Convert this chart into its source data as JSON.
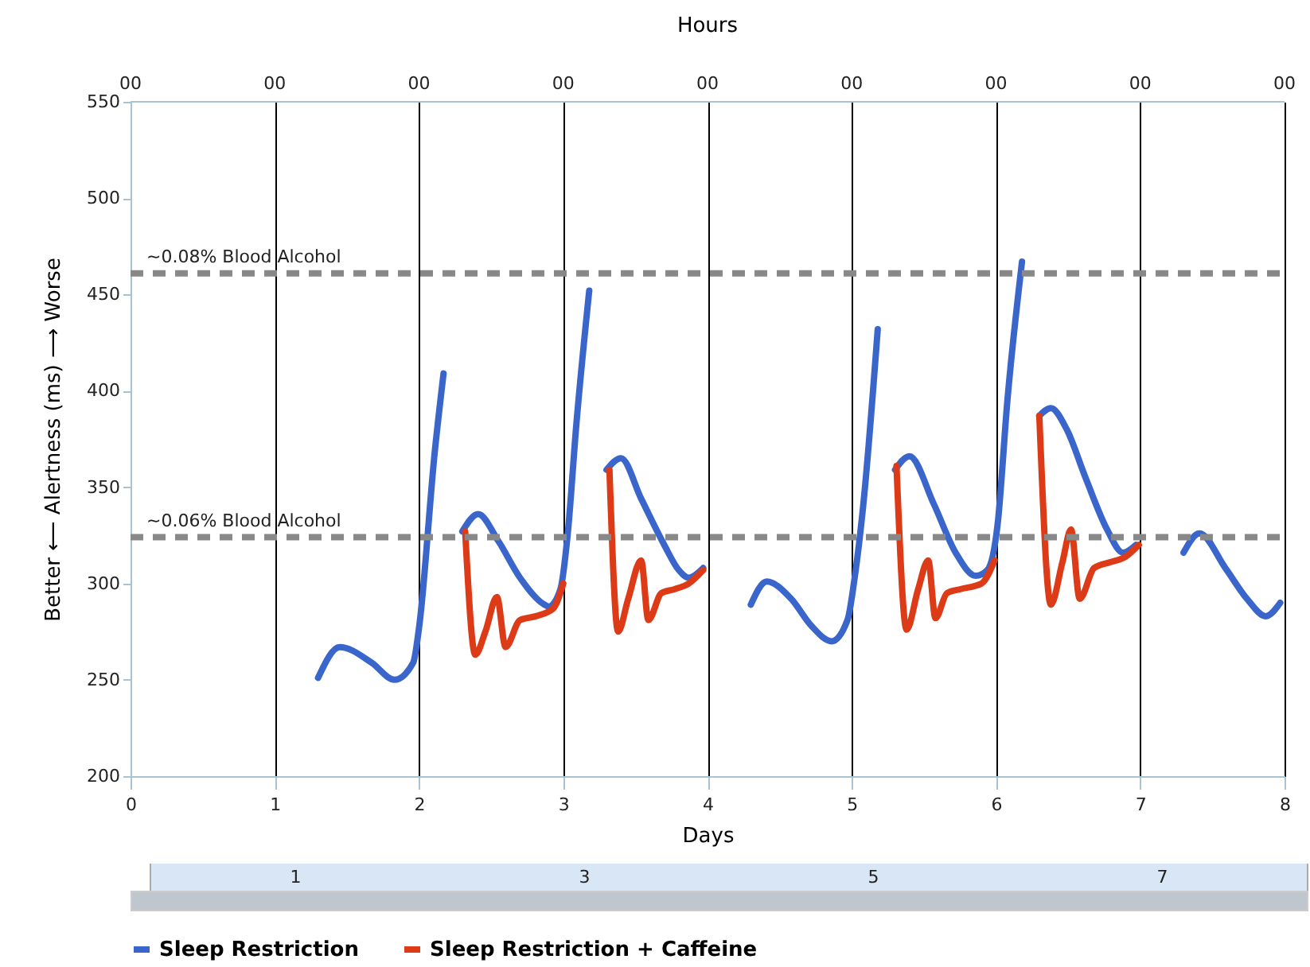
{
  "chart_data": {
    "type": "line",
    "xlabel": "Days",
    "ylabel": "Better ⟵ Alertness (ms) ⟶ Worse",
    "x2label": "Hours",
    "xlim": [
      0,
      8
    ],
    "xticks": [
      0,
      1,
      2,
      3,
      4,
      5,
      6,
      7,
      8
    ],
    "ylim": [
      200,
      550
    ],
    "yticks": [
      200,
      250,
      300,
      350,
      400,
      450,
      500,
      550
    ],
    "grid": "x",
    "legend": "bottom",
    "line_style": "solid",
    "marker": "none",
    "ref_lines": [
      {
        "axis": "y",
        "value": 461,
        "label": "~0.08% Blood Alcohol",
        "color": "#888888",
        "line_style": "dashed"
      },
      {
        "axis": "y",
        "value": 324,
        "label": "~0.06% Blood Alcohol",
        "color": "#888888",
        "line_style": "dashed"
      }
    ],
    "annotations": [
      "00",
      "00",
      "00",
      "00",
      "00",
      "00",
      "00",
      "00",
      "00",
      "1",
      "3",
      "5",
      "7"
    ],
    "series": [
      {
        "name": "Sleep Restriction",
        "color": "#3a66cc",
        "x": [
          1.3,
          1.45,
          1.67,
          1.83,
          1.96,
          2.0,
          2.11,
          2.17,
          2.23,
          2.3,
          2.41,
          2.55,
          2.7,
          2.87,
          2.9,
          2.98,
          3.03,
          3.09,
          3.18,
          3.24,
          3.3,
          3.4,
          3.54,
          3.7,
          3.8,
          3.87,
          3.97,
          4.15,
          4.3,
          4.41,
          4.58,
          4.72,
          4.86,
          4.97,
          5.02,
          5.08,
          5.18,
          5.24,
          5.3,
          5.4,
          5.57,
          5.72,
          5.86,
          5.94,
          6.01,
          6.08,
          6.18,
          6.24,
          6.3,
          6.38,
          6.49,
          6.62,
          6.77,
          6.88,
          6.97,
          7.15,
          7.3,
          7.41,
          7.59,
          7.74,
          7.87,
          7.97
        ],
        "values": [
          251,
          267,
          259,
          250,
          259,
          277,
          369,
          409,
          null,
          327,
          336,
          322,
          303,
          289,
          288,
          297,
          325,
          382,
          452,
          null,
          359,
          365,
          344,
          320,
          307,
          303,
          308,
          null,
          289,
          301,
          292,
          278,
          270,
          281,
          303,
          341,
          432,
          null,
          359,
          366,
          341,
          316,
          304,
          307,
          330,
          396,
          467,
          null,
          387,
          391,
          380,
          355,
          328,
          316,
          320,
          null,
          316,
          326,
          308,
          292,
          283,
          290
        ]
      },
      {
        "name": "Sleep Restriction + Caffeine",
        "color": "#dd3b17",
        "x": [
          2.32,
          2.39,
          2.46,
          2.54,
          2.6,
          2.7,
          2.81,
          2.93,
          3.0,
          3.16,
          3.32,
          3.38,
          3.45,
          3.54,
          3.59,
          3.68,
          3.77,
          3.87,
          3.97,
          4.6,
          5.31,
          5.38,
          5.46,
          5.53,
          5.58,
          5.66,
          5.75,
          5.9,
          5.99,
          6.15,
          6.3,
          6.38,
          6.46,
          6.52,
          6.58,
          6.68,
          6.79,
          6.9,
          6.99
        ],
        "values": [
          327,
          263,
          275,
          293,
          267,
          281,
          283,
          287,
          300,
          null,
          359,
          275,
          292,
          312,
          281,
          295,
          297,
          300,
          307,
          null,
          361,
          276,
          297,
          312,
          282,
          295,
          297,
          300,
          312,
          null,
          387,
          289,
          311,
          328,
          292,
          308,
          311,
          314,
          320
        ]
      }
    ]
  }
}
